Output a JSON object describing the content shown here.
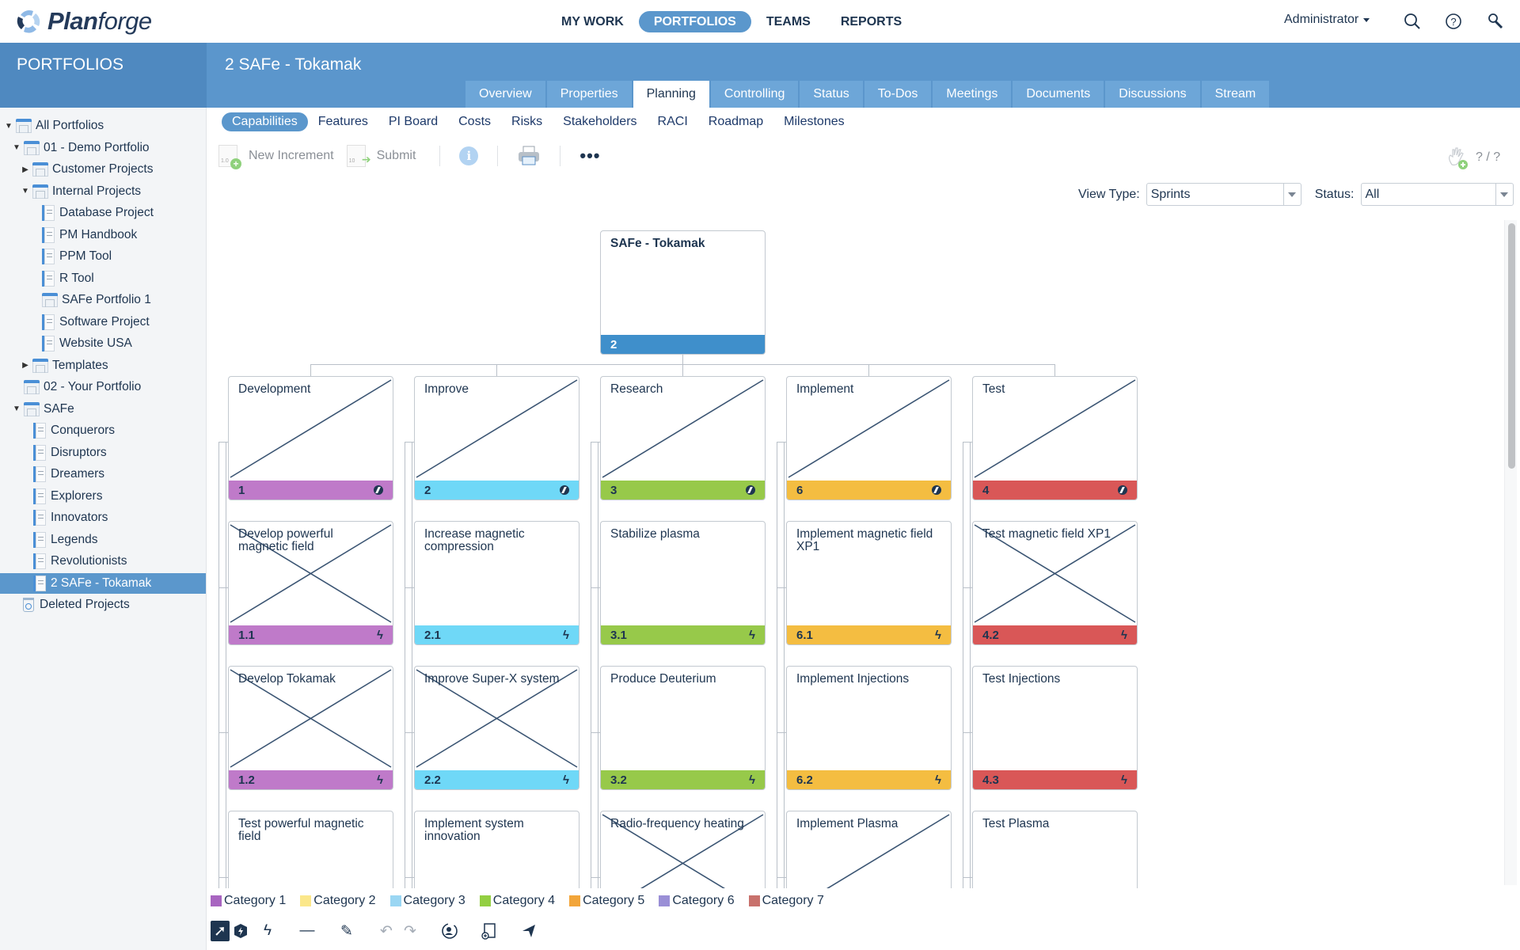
{
  "app": {
    "name_bold": "Plan",
    "name_rest": "forge"
  },
  "mainnav": [
    {
      "label": "MY WORK",
      "active": false
    },
    {
      "label": "PORTFOLIOS",
      "active": true
    },
    {
      "label": "TEAMS",
      "active": false
    },
    {
      "label": "REPORTS",
      "active": false
    }
  ],
  "user": {
    "name": "Administrator"
  },
  "header": {
    "section_title": "PORTFOLIOS",
    "project_title": "2 SAFe - Tokamak"
  },
  "tabs": [
    "Overview",
    "Properties",
    "Planning",
    "Controlling",
    "Status",
    "To-Dos",
    "Meetings",
    "Documents",
    "Discussions",
    "Stream"
  ],
  "active_tab": "Planning",
  "subtabs": [
    "Capabilities",
    "Features",
    "PI Board",
    "Costs",
    "Risks",
    "Stakeholders",
    "RACI",
    "Roadmap",
    "Milestones"
  ],
  "active_subtab": "Capabilities",
  "toolbar": {
    "new_increment": "New Increment",
    "submit": "Submit",
    "new_increment_icon_text": "1.0",
    "submit_icon_text": "10",
    "page_counter": "? / ?"
  },
  "filters": {
    "view_type_label": "View Type:",
    "view_type_value": "Sprints",
    "status_label": "Status:",
    "status_value": "All"
  },
  "sidebar": {
    "items": [
      {
        "label": "All Portfolios",
        "level": 0,
        "icon": "folder",
        "expander": "open"
      },
      {
        "label": "01 - Demo Portfolio",
        "level": 1,
        "icon": "folder",
        "expander": "open"
      },
      {
        "label": "Customer Projects",
        "level": 2,
        "icon": "folder",
        "expander": "closed"
      },
      {
        "label": "Internal Projects",
        "level": 2,
        "icon": "folder",
        "expander": "open"
      },
      {
        "label": "Database Project",
        "level": 3,
        "icon": "project"
      },
      {
        "label": "PM Handbook",
        "level": 3,
        "icon": "project"
      },
      {
        "label": "PPM Tool",
        "level": 3,
        "icon": "project"
      },
      {
        "label": "R Tool",
        "level": 3,
        "icon": "project"
      },
      {
        "label": "SAFe Portfolio 1",
        "level": 3,
        "icon": "folder"
      },
      {
        "label": "Software Project",
        "level": 3,
        "icon": "project"
      },
      {
        "label": "Website USA",
        "level": 3,
        "icon": "project"
      },
      {
        "label": "Templates",
        "level": 2,
        "icon": "folder",
        "expander": "closed"
      },
      {
        "label": "02 - Your Portfolio",
        "level": 1,
        "icon": "folder"
      },
      {
        "label": "SAFe",
        "level": 1,
        "icon": "folder",
        "expander": "open"
      },
      {
        "label": "Conquerors",
        "level": 2,
        "icon": "project"
      },
      {
        "label": "Disruptors",
        "level": 2,
        "icon": "project"
      },
      {
        "label": "Dreamers",
        "level": 2,
        "icon": "project"
      },
      {
        "label": "Explorers",
        "level": 2,
        "icon": "project"
      },
      {
        "label": "Innovators",
        "level": 2,
        "icon": "project"
      },
      {
        "label": "Legends",
        "level": 2,
        "icon": "project"
      },
      {
        "label": "Revolutionists",
        "level": 2,
        "icon": "project"
      },
      {
        "label": "2 SAFe - Tokamak",
        "level": 2,
        "icon": "project",
        "selected": true
      },
      {
        "label": "Deleted Projects",
        "level": 1,
        "icon": "trash"
      }
    ]
  },
  "board": {
    "root": {
      "title": "SAFe - Tokamak",
      "id": "2",
      "color": "#3f8fcb"
    },
    "columns": [
      {
        "color": "#bf7ac9",
        "cards": [
          {
            "title": "Development",
            "id": "1",
            "mark": "half",
            "icon": "capability"
          },
          {
            "title": "Develop powerful magnetic field",
            "id": "1.1",
            "mark": "full",
            "icon": "bolt"
          },
          {
            "title": "Develop Tokamak",
            "id": "1.2",
            "mark": "full",
            "icon": "bolt"
          },
          {
            "title": "Test powerful magnetic field",
            "id": "",
            "mark": "none",
            "icon": ""
          }
        ]
      },
      {
        "color": "#6fd8f7",
        "cards": [
          {
            "title": "Improve",
            "id": "2",
            "mark": "half",
            "icon": "capability"
          },
          {
            "title": "Increase magnetic compression",
            "id": "2.1",
            "mark": "none",
            "icon": "bolt"
          },
          {
            "title": "Improve Super-X system",
            "id": "2.2",
            "mark": "full",
            "icon": "bolt"
          },
          {
            "title": "Implement system innovation",
            "id": "",
            "mark": "none",
            "icon": ""
          }
        ]
      },
      {
        "color": "#97c94a",
        "cards": [
          {
            "title": "Research",
            "id": "3",
            "mark": "half",
            "icon": "capability"
          },
          {
            "title": "Stabilize plasma",
            "id": "3.1",
            "mark": "none",
            "icon": "bolt"
          },
          {
            "title": "Produce Deuterium",
            "id": "3.2",
            "mark": "none",
            "icon": "bolt"
          },
          {
            "title": "Radio-frequency heating",
            "id": "",
            "mark": "full",
            "icon": ""
          }
        ]
      },
      {
        "color": "#f4bd41",
        "cards": [
          {
            "title": "Implement",
            "id": "6",
            "mark": "half",
            "icon": "capability"
          },
          {
            "title": "Implement magnetic field XP1",
            "id": "6.1",
            "mark": "none",
            "icon": "bolt"
          },
          {
            "title": "Implement Injections",
            "id": "6.2",
            "mark": "none",
            "icon": "bolt"
          },
          {
            "title": "Implement Plasma",
            "id": "",
            "mark": "half",
            "icon": ""
          }
        ]
      },
      {
        "color": "#d95757",
        "cards": [
          {
            "title": "Test",
            "id": "4",
            "mark": "half",
            "icon": "capability"
          },
          {
            "title": "Test magnetic field XP1",
            "id": "4.2",
            "mark": "full",
            "icon": "bolt"
          },
          {
            "title": "Test Injections",
            "id": "4.3",
            "mark": "none",
            "icon": "bolt"
          },
          {
            "title": "Test Plasma",
            "id": "",
            "mark": "none",
            "icon": ""
          }
        ]
      }
    ]
  },
  "legend": [
    {
      "label": "Category 1",
      "color": "#a865c0"
    },
    {
      "label": "Category 2",
      "color": "#fbe78a"
    },
    {
      "label": "Category 3",
      "color": "#9ad6f3"
    },
    {
      "label": "Category 4",
      "color": "#93cf42"
    },
    {
      "label": "Category 5",
      "color": "#f2a53a"
    },
    {
      "label": "Category 6",
      "color": "#9a8fd6"
    },
    {
      "label": "Category 7",
      "color": "#c8716c"
    }
  ],
  "bottom_tools": [
    "select-tool",
    "capability-tool",
    "feature-tool",
    "line-tool",
    "pencil-tool",
    "undo",
    "redo",
    "assign-tool",
    "add-page-tool",
    "send-tool"
  ]
}
